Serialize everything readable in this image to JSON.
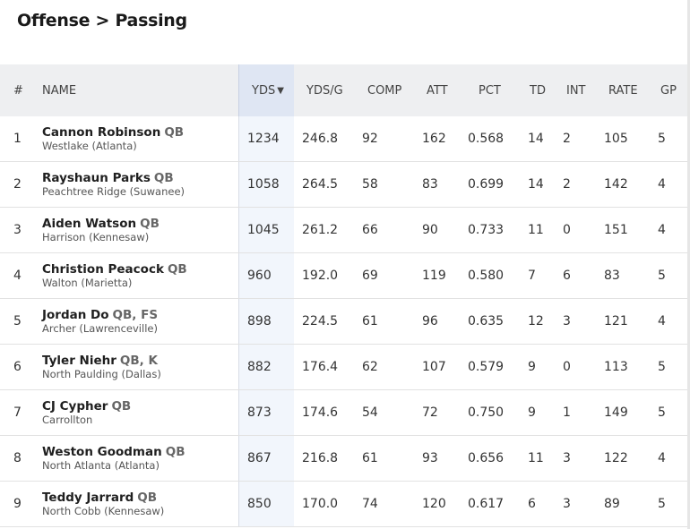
{
  "page": {
    "title": "Offense > Passing"
  },
  "table": {
    "columns": {
      "rank": "#",
      "name": "NAME",
      "yds": "YDS",
      "ydsg": "YDS/G",
      "comp": "COMP",
      "att": "ATT",
      "pct": "PCT",
      "td": "TD",
      "int": "INT",
      "rate": "RATE",
      "gp": "GP"
    },
    "sort_indicator": "▼",
    "rows": [
      {
        "rank": "1",
        "name": "Cannon Robinson",
        "pos": "QB",
        "school": "Westlake (Atlanta)",
        "yds": "1234",
        "ydsg": "246.8",
        "comp": "92",
        "att": "162",
        "pct": "0.568",
        "td": "14",
        "int": "2",
        "rate": "105",
        "gp": "5"
      },
      {
        "rank": "2",
        "name": "Rayshaun Parks",
        "pos": "QB",
        "school": "Peachtree Ridge (Suwanee)",
        "yds": "1058",
        "ydsg": "264.5",
        "comp": "58",
        "att": "83",
        "pct": "0.699",
        "td": "14",
        "int": "2",
        "rate": "142",
        "gp": "4"
      },
      {
        "rank": "3",
        "name": "Aiden Watson",
        "pos": "QB",
        "school": "Harrison (Kennesaw)",
        "yds": "1045",
        "ydsg": "261.2",
        "comp": "66",
        "att": "90",
        "pct": "0.733",
        "td": "11",
        "int": "0",
        "rate": "151",
        "gp": "4"
      },
      {
        "rank": "4",
        "name": "Christion Peacock",
        "pos": "QB",
        "school": "Walton (Marietta)",
        "yds": "960",
        "ydsg": "192.0",
        "comp": "69",
        "att": "119",
        "pct": "0.580",
        "td": "7",
        "int": "6",
        "rate": "83",
        "gp": "5"
      },
      {
        "rank": "5",
        "name": "Jordan Do",
        "pos": "QB, FS",
        "school": "Archer (Lawrenceville)",
        "yds": "898",
        "ydsg": "224.5",
        "comp": "61",
        "att": "96",
        "pct": "0.635",
        "td": "12",
        "int": "3",
        "rate": "121",
        "gp": "4"
      },
      {
        "rank": "6",
        "name": "Tyler Niehr",
        "pos": "QB, K",
        "school": "North Paulding (Dallas)",
        "yds": "882",
        "ydsg": "176.4",
        "comp": "62",
        "att": "107",
        "pct": "0.579",
        "td": "9",
        "int": "0",
        "rate": "113",
        "gp": "5"
      },
      {
        "rank": "7",
        "name": "CJ Cypher",
        "pos": "QB",
        "school": "Carrollton",
        "yds": "873",
        "ydsg": "174.6",
        "comp": "54",
        "att": "72",
        "pct": "0.750",
        "td": "9",
        "int": "1",
        "rate": "149",
        "gp": "5"
      },
      {
        "rank": "8",
        "name": "Weston Goodman",
        "pos": "QB",
        "school": "North Atlanta (Atlanta)",
        "yds": "867",
        "ydsg": "216.8",
        "comp": "61",
        "att": "93",
        "pct": "0.656",
        "td": "11",
        "int": "3",
        "rate": "122",
        "gp": "4"
      },
      {
        "rank": "9",
        "name": "Teddy Jarrard",
        "pos": "QB",
        "school": "North Cobb (Kennesaw)",
        "yds": "850",
        "ydsg": "170.0",
        "comp": "74",
        "att": "120",
        "pct": "0.617",
        "td": "6",
        "int": "3",
        "rate": "89",
        "gp": "5"
      }
    ]
  }
}
